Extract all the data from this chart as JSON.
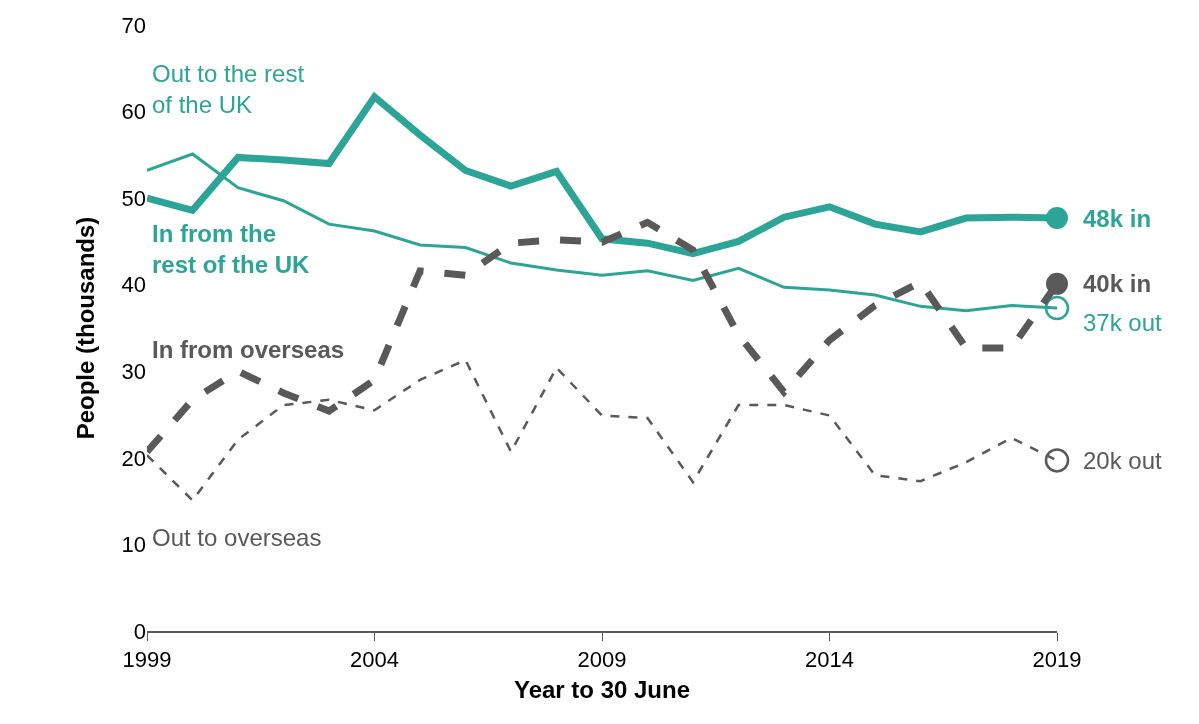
{
  "chart_data": {
    "type": "line",
    "xlabel": "Year to 30 June",
    "ylabel": "People (thousands)",
    "x": [
      1999,
      2000,
      2001,
      2002,
      2003,
      2004,
      2005,
      2006,
      2007,
      2008,
      2009,
      2010,
      2011,
      2012,
      2013,
      2014,
      2015,
      2016,
      2017,
      2018,
      2019
    ],
    "series": [
      {
        "name": "In from the rest of the UK",
        "color": "#2ca597",
        "line_style": "solid",
        "values": [
          50.0,
          48.6,
          54.7,
          54.4,
          54.0,
          61.7,
          57.3,
          53.2,
          51.4,
          53.1,
          45.3,
          44.8,
          43.6,
          45.0,
          47.8,
          49.0,
          47.0,
          46.1,
          47.7,
          47.8,
          47.7
        ]
      },
      {
        "name": "Out to the rest of the UK",
        "color": "#2ca597",
        "line_style": "solid",
        "values": [
          53.2,
          55.1,
          51.2,
          49.7,
          47.0,
          46.2,
          44.6,
          44.3,
          42.5,
          41.7,
          41.1,
          41.6,
          40.5,
          41.9,
          39.7,
          39.4,
          38.8,
          37.5,
          37.0,
          37.6,
          37.3
        ]
      },
      {
        "name": "In from overseas",
        "color": "#595959",
        "line_style": "dashed",
        "values": [
          20.7,
          26.7,
          30.0,
          27.5,
          25.4,
          29.0,
          41.6,
          41.1,
          44.8,
          45.2,
          44.9,
          47.2,
          44.0,
          34.2,
          27.6,
          33.6,
          37.6,
          40.3,
          32.7,
          32.7,
          40.1
        ]
      },
      {
        "name": "Out to overseas",
        "color": "#595959",
        "line_style": "dashed",
        "values": [
          20.3,
          15.1,
          22.1,
          26.1,
          26.7,
          25.5,
          29.0,
          31.3,
          20.7,
          30.4,
          24.9,
          24.6,
          17.2,
          26.1,
          26.1,
          24.9,
          18.0,
          17.3,
          19.5,
          22.3,
          19.7
        ]
      }
    ],
    "annotations": [
      "48k in",
      "37k out",
      "40k in",
      "20k out"
    ],
    "xlim": [
      1999,
      2019
    ],
    "xticks": [
      1999,
      2004,
      2009,
      2014,
      2019
    ],
    "ylim": [
      0,
      70
    ],
    "yticks": [
      0,
      10,
      20,
      30,
      40,
      50,
      60,
      70
    ],
    "grid": false,
    "legend": false
  }
}
